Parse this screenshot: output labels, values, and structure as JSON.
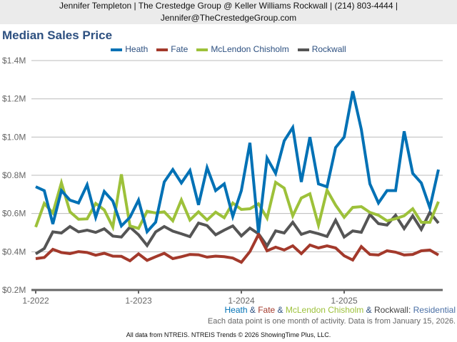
{
  "header": {
    "line1": "Jennifer Templeton | The Crestedge Group @ Keller Williams Rockwall | (214) 803-4444 |",
    "line2": "Jennifer@TheCrestedgeGroup.com"
  },
  "subtitle": {
    "sep": " & ",
    "suffix": ": ",
    "type": "Residential"
  },
  "note": "Each data point is one month of activity. Data is from January 15, 2026.",
  "footer": "All data from NTREIS. NTREIS Trends © 2026 ShowingTime Plus, LLC.",
  "chart_data": {
    "type": "line",
    "title": "Median Sales Price",
    "xlabel": "",
    "ylabel": "",
    "ylim": [
      0.2,
      1.4
    ],
    "yticks": [
      {
        "v": 0.2,
        "label": "$0.2M"
      },
      {
        "v": 0.4,
        "label": "$0.4M"
      },
      {
        "v": 0.6,
        "label": "$0.6M"
      },
      {
        "v": 0.8,
        "label": "$0.8M"
      },
      {
        "v": 1.0,
        "label": "$1.0M"
      },
      {
        "v": 1.2,
        "label": "$1.2M"
      },
      {
        "v": 1.4,
        "label": "$1.4M"
      }
    ],
    "xticks": [
      {
        "i": 0,
        "label": "1-2022"
      },
      {
        "i": 12,
        "label": "1-2023"
      },
      {
        "i": 24,
        "label": "1-2024"
      },
      {
        "i": 36,
        "label": "1-2025"
      }
    ],
    "x_start": "1-2022",
    "x_end": "12-2025",
    "units": "$M",
    "grid": true,
    "legend": "top-center",
    "series": [
      {
        "name": "Heath",
        "color": "#0071b5",
        "values": [
          0.74,
          0.72,
          0.545,
          0.72,
          0.67,
          0.655,
          0.75,
          0.58,
          0.715,
          0.665,
          0.535,
          0.58,
          0.67,
          0.505,
          0.555,
          0.765,
          0.83,
          0.76,
          0.825,
          0.645,
          0.84,
          0.72,
          0.755,
          0.585,
          0.72,
          0.97,
          0.5,
          0.89,
          0.81,
          0.98,
          1.05,
          0.765,
          1.0,
          0.755,
          0.74,
          0.945,
          1.0,
          1.24,
          1.04,
          0.755,
          0.655,
          0.72,
          0.72,
          1.03,
          0.81,
          0.76,
          0.63,
          0.83
        ]
      },
      {
        "name": "Fate",
        "color": "#a3392b",
        "values": [
          0.364,
          0.37,
          0.413,
          0.396,
          0.39,
          0.401,
          0.396,
          0.382,
          0.392,
          0.377,
          0.376,
          0.353,
          0.389,
          0.355,
          0.374,
          0.392,
          0.364,
          0.374,
          0.386,
          0.384,
          0.372,
          0.377,
          0.374,
          0.367,
          0.345,
          0.401,
          0.49,
          0.405,
          0.424,
          0.409,
          0.431,
          0.39,
          0.435,
          0.42,
          0.431,
          0.42,
          0.379,
          0.357,
          0.427,
          0.386,
          0.383,
          0.405,
          0.398,
          0.383,
          0.386,
          0.405,
          0.409,
          0.383
        ]
      },
      {
        "name": "McLendon Chisholm",
        "color": "#9dc13a",
        "values": [
          0.529,
          0.653,
          0.603,
          0.761,
          0.609,
          0.57,
          0.572,
          0.653,
          0.619,
          0.529,
          0.805,
          0.535,
          0.522,
          0.612,
          0.603,
          0.609,
          0.562,
          0.671,
          0.566,
          0.609,
          0.566,
          0.607,
          0.578,
          0.655,
          0.621,
          0.625,
          0.651,
          0.576,
          0.763,
          0.733,
          0.588,
          0.681,
          0.703,
          0.539,
          0.722,
          0.644,
          0.58,
          0.632,
          0.636,
          0.606,
          0.591,
          0.562,
          0.573,
          0.588,
          0.625,
          0.554,
          0.554,
          0.662
        ]
      },
      {
        "name": "Rockwall",
        "color": "#555555",
        "values": [
          0.389,
          0.417,
          0.504,
          0.498,
          0.532,
          0.504,
          0.513,
          0.501,
          0.52,
          0.482,
          0.477,
          0.529,
          0.489,
          0.433,
          0.504,
          0.532,
          0.508,
          0.494,
          0.479,
          0.55,
          0.537,
          0.489,
          0.513,
          0.535,
          0.483,
          0.524,
          0.494,
          0.431,
          0.509,
          0.498,
          0.554,
          0.491,
          0.506,
          0.494,
          0.48,
          0.565,
          0.477,
          0.509,
          0.502,
          0.595,
          0.547,
          0.54,
          0.591,
          0.521,
          0.588,
          0.517,
          0.606,
          0.55
        ]
      }
    ]
  }
}
